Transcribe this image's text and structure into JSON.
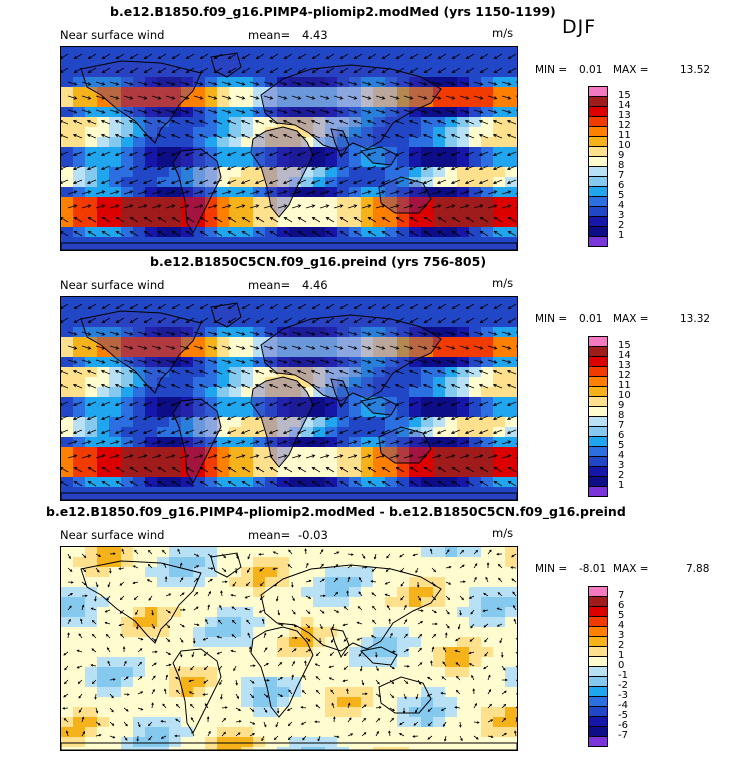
{
  "season": "DJF",
  "panels": [
    {
      "id": "pliomip2",
      "title": "b.e12.B1850.f09_g16.PIMP4-pliomip2.modMed (yrs 1150-1199)",
      "variable": "Near surface wind",
      "mean_label": "mean=",
      "mean": "4.43",
      "units": "m/s",
      "min_label": "MIN =",
      "min": "0.01",
      "max_label": "MAX =",
      "max": "13.52",
      "colorbar_labels": [
        "15",
        "14",
        "13",
        "12",
        "11",
        "10",
        "9",
        "8",
        "7",
        "6",
        "5",
        "4",
        "3",
        "2",
        "1"
      ],
      "colorbar_colors": [
        "#f37ac0",
        "#a01b1b",
        "#dc0000",
        "#f23b00",
        "#ff7f00",
        "#f5b21b",
        "#ffe08c",
        "#fffdd0",
        "#b9e1f5",
        "#86c9ee",
        "#1fa6ee",
        "#2c6fe0",
        "#2147c6",
        "#1616a8",
        "#0d0d88",
        "#7a36d9"
      ]
    },
    {
      "id": "preind",
      "title": "b.e12.B1850C5CN.f09_g16.preind (yrs 756-805)",
      "variable": "Near surface wind",
      "mean_label": "mean=",
      "mean": "4.46",
      "units": "m/s",
      "min_label": "MIN =",
      "min": "0.01",
      "max_label": "MAX =",
      "max": "13.32",
      "colorbar_labels": [
        "15",
        "14",
        "13",
        "12",
        "11",
        "10",
        "9",
        "8",
        "7",
        "6",
        "5",
        "4",
        "3",
        "2",
        "1"
      ],
      "colorbar_colors": [
        "#f37ac0",
        "#a01b1b",
        "#dc0000",
        "#f23b00",
        "#ff7f00",
        "#f5b21b",
        "#ffe08c",
        "#fffdd0",
        "#b9e1f5",
        "#86c9ee",
        "#1fa6ee",
        "#2c6fe0",
        "#2147c6",
        "#1616a8",
        "#0d0d88",
        "#7a36d9"
      ]
    },
    {
      "id": "diff",
      "title": "b.e12.B1850.f09_g16.PIMP4-pliomip2.modMed - b.e12.B1850C5CN.f09_g16.preind",
      "variable": "Near surface wind",
      "mean_label": "mean=",
      "mean": "-0.03",
      "units": "m/s",
      "min_label": "MIN =",
      "min": "-8.01",
      "max_label": "MAX =",
      "max": "7.88",
      "colorbar_labels": [
        "7",
        "6",
        "5",
        "4",
        "3",
        "2",
        "1",
        "0",
        "-1",
        "-2",
        "-3",
        "-4",
        "-5",
        "-6",
        "-7"
      ],
      "colorbar_colors": [
        "#f37ac0",
        "#a01b1b",
        "#dc0000",
        "#f23b00",
        "#ff7f00",
        "#f5b21b",
        "#ffe08c",
        "#fffdd0",
        "#b9e1f5",
        "#86c9ee",
        "#1fa6ee",
        "#2c6fe0",
        "#2147c6",
        "#1616a8",
        "#0d0d88",
        "#7a36d9"
      ]
    }
  ]
}
